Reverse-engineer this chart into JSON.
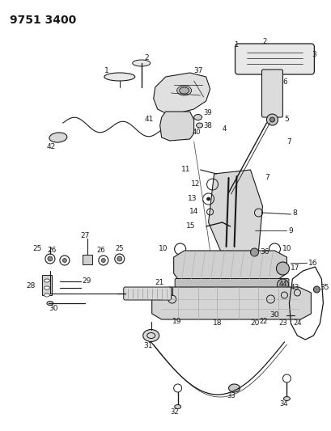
{
  "title": "9751 3400",
  "bg_color": "#ffffff",
  "line_color": "#1a1a1a",
  "title_fontsize": 10,
  "label_fontsize": 6.5,
  "fig_width": 4.1,
  "fig_height": 5.33,
  "dpi": 100
}
